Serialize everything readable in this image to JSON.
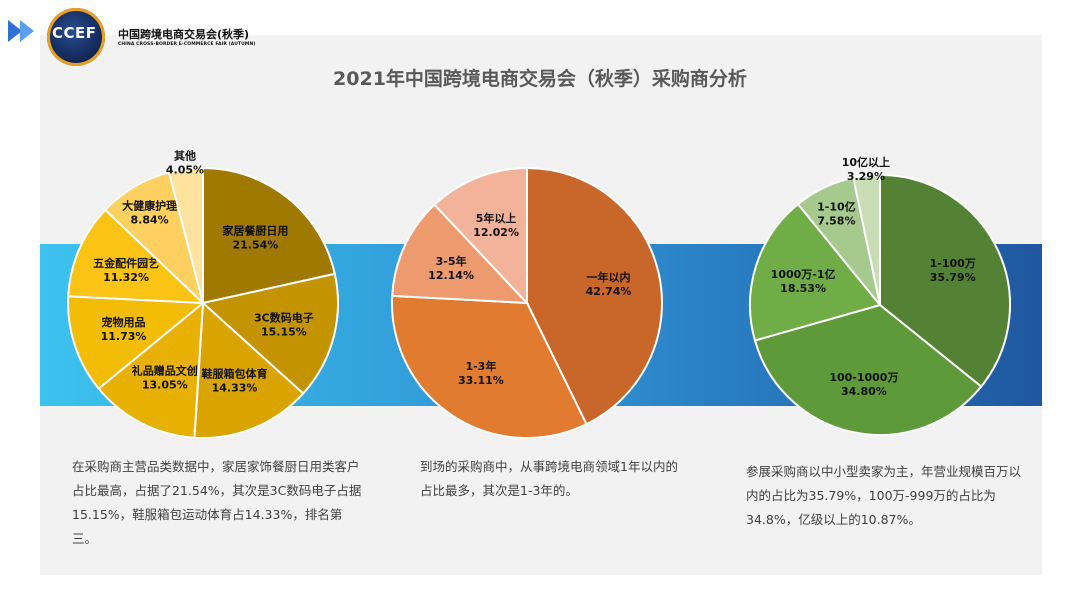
{
  "logo": {
    "abbr": "CCEF",
    "name_cn": "中国跨境电商交易会(秋季)",
    "name_en": "CHINA CROSS-BORDER E-COMMERCE FAIR (AUTUMN)"
  },
  "title": "2021年中国跨境电商交易会（秋季）采购商分析",
  "descriptions": [
    "在采购商主营品类数据中，家居家饰餐厨日用类客户占比最高，占据了21.54%，其次是3C数码电子占据15.15%，鞋服箱包运动体育占14.33%，排名第三。",
    "到场的采购商中，从事跨境电商领域1年以内的占比最多，其次是1-3年的。",
    "参展采购商以中小型卖家为主，年营业规模百万以内的占比为35.79%，100万-999万的占比为34.8%，亿级以上的10.87%。"
  ],
  "chart_data": [
    {
      "type": "pie",
      "title": "",
      "series": [
        {
          "values": [
            21.54,
            15.15,
            14.33,
            13.05,
            11.73,
            11.32,
            8.84,
            4.05
          ],
          "categories": [
            "家居餐厨日用",
            "3C数码电子",
            "鞋服箱包体育",
            "礼品赠品文创",
            "宠物用品",
            "五金配件园艺",
            "大健康护理",
            "其他"
          ],
          "labels": [
            "21.54%",
            "15.15%",
            "14.33%",
            "13.05%",
            "11.73%",
            "11.32%",
            "8.84%",
            "4.05%"
          ]
        }
      ],
      "colors": [
        "#a07a00",
        "#c49400",
        "#d9a400",
        "#e8b000",
        "#f3bd05",
        "#fbc415",
        "#fdd060",
        "#fde39e"
      ]
    },
    {
      "type": "pie",
      "title": "",
      "series": [
        {
          "values": [
            42.74,
            33.11,
            12.14,
            12.02
          ],
          "categories": [
            "一年以内",
            "1-3年",
            "3-5年",
            "5年以上"
          ],
          "labels": [
            "42.74%",
            "33.11%",
            "12.14%",
            "12.02%"
          ]
        }
      ],
      "colors": [
        "#c9662a",
        "#e07b30",
        "#ec9a6e",
        "#f2b39a"
      ]
    },
    {
      "type": "pie",
      "title": "",
      "series": [
        {
          "values": [
            35.79,
            34.8,
            18.53,
            7.58,
            3.29
          ],
          "categories": [
            "1-100万",
            "100-1000万",
            "1000万-1亿",
            "1-10亿",
            "10亿以上"
          ],
          "labels": [
            "35.79%",
            "34.80%",
            "18.53%",
            "7.58%",
            "3.29%"
          ]
        }
      ],
      "colors": [
        "#548235",
        "#5e9a3a",
        "#71ad47",
        "#a6c98d",
        "#c8ddb5"
      ]
    }
  ]
}
